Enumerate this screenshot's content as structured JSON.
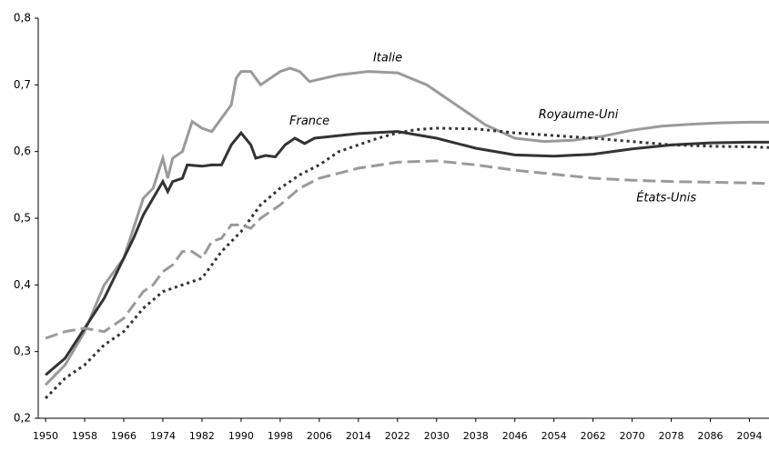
{
  "chart_data": {
    "type": "line",
    "xlim": [
      1948.5,
      2098
    ],
    "ylim": [
      0.2,
      0.8
    ],
    "xticks": [
      1950,
      1958,
      1966,
      1974,
      1982,
      1990,
      1998,
      2006,
      2014,
      2022,
      2030,
      2038,
      2046,
      2054,
      2062,
      2070,
      2078,
      2086,
      2094
    ],
    "yticks": [
      {
        "value": 0.2,
        "label": "0,2"
      },
      {
        "value": 0.3,
        "label": "0,3"
      },
      {
        "value": 0.4,
        "label": "0,4"
      },
      {
        "value": 0.5,
        "label": "0,5"
      },
      {
        "value": 0.6,
        "label": "0,6"
      },
      {
        "value": 0.7,
        "label": "0,7"
      },
      {
        "value": 0.8,
        "label": "0,8"
      }
    ],
    "series": [
      {
        "name": "Italie",
        "color": "#9a9a9a",
        "dash": "solid",
        "x": [
          1950,
          1954,
          1958,
          1962,
          1966,
          1970,
          1972,
          1974,
          1975,
          1976,
          1978,
          1980,
          1982,
          1984,
          1986,
          1988,
          1989,
          1990,
          1992,
          1994,
          1996,
          1998,
          2000,
          2002,
          2004,
          2010,
          2016,
          2022,
          2028,
          2034,
          2040,
          2046,
          2052,
          2058,
          2064,
          2070,
          2076,
          2082,
          2088,
          2094,
          2098
        ],
        "values": [
          0.25,
          0.28,
          0.33,
          0.4,
          0.44,
          0.53,
          0.545,
          0.59,
          0.56,
          0.59,
          0.6,
          0.645,
          0.635,
          0.63,
          0.65,
          0.67,
          0.71,
          0.72,
          0.72,
          0.7,
          0.71,
          0.72,
          0.725,
          0.72,
          0.705,
          0.715,
          0.72,
          0.718,
          0.7,
          0.67,
          0.64,
          0.62,
          0.615,
          0.617,
          0.623,
          0.632,
          0.638,
          0.641,
          0.643,
          0.644,
          0.644
        ]
      },
      {
        "name": "France",
        "color": "#333333",
        "dash": "solid",
        "x": [
          1950,
          1954,
          1958,
          1962,
          1964,
          1966,
          1968,
          1970,
          1972,
          1974,
          1975,
          1976,
          1978,
          1979,
          1982,
          1984,
          1986,
          1988,
          1990,
          1992,
          1993,
          1995,
          1997,
          1999,
          2001,
          2003,
          2005,
          2014,
          2022,
          2030,
          2038,
          2046,
          2054,
          2062,
          2070,
          2078,
          2086,
          2094,
          2098
        ],
        "values": [
          0.265,
          0.29,
          0.335,
          0.38,
          0.41,
          0.44,
          0.47,
          0.505,
          0.53,
          0.555,
          0.54,
          0.555,
          0.56,
          0.58,
          0.578,
          0.58,
          0.58,
          0.61,
          0.628,
          0.61,
          0.59,
          0.594,
          0.592,
          0.61,
          0.62,
          0.612,
          0.62,
          0.627,
          0.63,
          0.62,
          0.605,
          0.595,
          0.593,
          0.596,
          0.604,
          0.61,
          0.613,
          0.614,
          0.614
        ]
      },
      {
        "name": "Royaume-Uni",
        "color": "#333333",
        "dash": "dotted",
        "x": [
          1950,
          1954,
          1958,
          1962,
          1966,
          1970,
          1974,
          1978,
          1982,
          1986,
          1990,
          1994,
          1998,
          2002,
          2006,
          2010,
          2014,
          2018,
          2022,
          2026,
          2030,
          2038,
          2046,
          2054,
          2062,
          2070,
          2078,
          2086,
          2094,
          2098
        ],
        "values": [
          0.23,
          0.26,
          0.28,
          0.31,
          0.33,
          0.365,
          0.39,
          0.4,
          0.41,
          0.45,
          0.48,
          0.52,
          0.545,
          0.565,
          0.58,
          0.6,
          0.61,
          0.62,
          0.628,
          0.633,
          0.635,
          0.634,
          0.628,
          0.624,
          0.62,
          0.615,
          0.61,
          0.608,
          0.607,
          0.606
        ]
      },
      {
        "name": "États-Unis",
        "color": "#9a9a9a",
        "dash": "dashed",
        "x": [
          1950,
          1954,
          1958,
          1962,
          1966,
          1970,
          1972,
          1974,
          1976,
          1978,
          1980,
          1982,
          1984,
          1986,
          1988,
          1990,
          1992,
          1994,
          1998,
          2002,
          2006,
          2014,
          2022,
          2030,
          2038,
          2046,
          2054,
          2062,
          2070,
          2078,
          2086,
          2094,
          2098
        ],
        "values": [
          0.32,
          0.33,
          0.335,
          0.33,
          0.35,
          0.39,
          0.4,
          0.42,
          0.43,
          0.45,
          0.45,
          0.44,
          0.465,
          0.47,
          0.49,
          0.49,
          0.485,
          0.5,
          0.52,
          0.545,
          0.56,
          0.575,
          0.584,
          0.586,
          0.58,
          0.572,
          0.566,
          0.56,
          0.557,
          0.555,
          0.554,
          0.553,
          0.552
        ]
      }
    ]
  }
}
